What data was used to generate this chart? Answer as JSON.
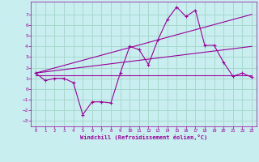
{
  "xlabel": "Windchill (Refroidissement éolien,°C)",
  "bg_color": "#c8eef0",
  "grid_color": "#a8d8cc",
  "line_color": "#990099",
  "xlim": [
    -0.5,
    23.5
  ],
  "ylim": [
    -3.5,
    8.2
  ],
  "yticks": [
    -3,
    -2,
    -1,
    0,
    1,
    2,
    3,
    4,
    5,
    6,
    7
  ],
  "xticks": [
    0,
    1,
    2,
    3,
    4,
    5,
    6,
    7,
    8,
    9,
    10,
    11,
    12,
    13,
    14,
    15,
    16,
    17,
    18,
    19,
    20,
    21,
    22,
    23
  ],
  "line1_x": [
    0,
    1,
    2,
    3,
    4,
    5,
    6,
    7,
    8,
    9,
    10,
    11,
    12,
    13,
    14,
    15,
    16,
    17,
    18,
    19,
    20,
    21,
    22,
    23
  ],
  "line1_y": [
    1.5,
    0.8,
    1.0,
    1.0,
    0.6,
    -2.4,
    -1.2,
    -1.2,
    -1.3,
    1.5,
    4.0,
    3.7,
    2.3,
    4.6,
    6.5,
    7.7,
    6.8,
    7.4,
    4.1,
    4.1,
    2.5,
    1.2,
    1.5,
    1.1
  ],
  "line2_x": [
    0,
    23
  ],
  "line2_y": [
    1.5,
    7.0
  ],
  "line3_x": [
    0,
    23
  ],
  "line3_y": [
    1.5,
    4.0
  ],
  "line4_x": [
    0,
    23
  ],
  "line4_y": [
    1.3,
    1.3
  ]
}
